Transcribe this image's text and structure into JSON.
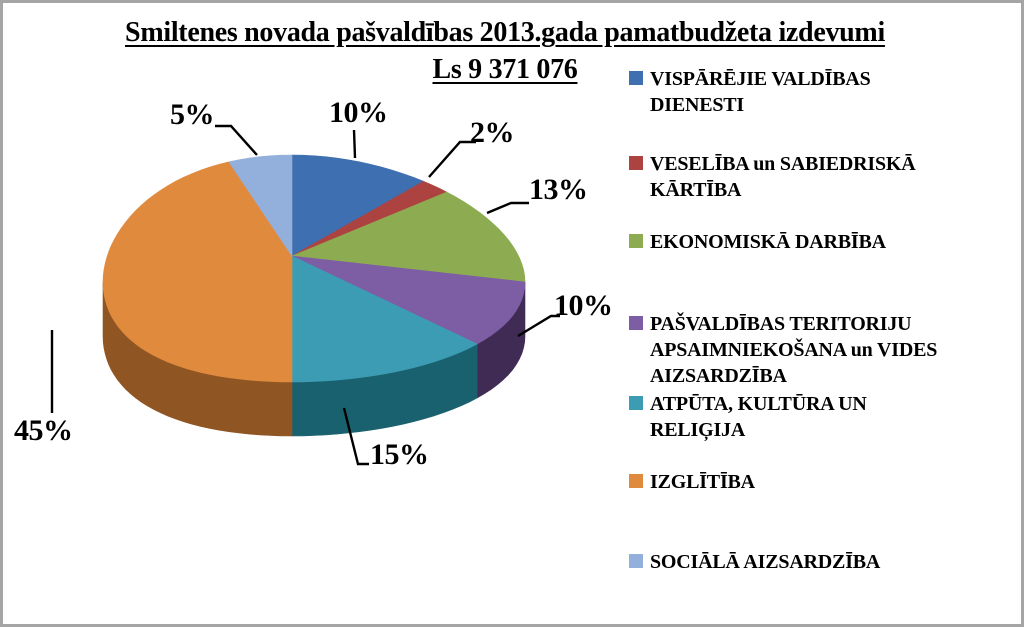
{
  "frame": {
    "border_color": "#A5A5A5",
    "background": "#FFFFFF"
  },
  "chart_data": {
    "type": "pie",
    "style": "3d",
    "title": "Smiltenes novada pašvaldības 2013.gada pamatbudžeta izdevumi",
    "subtitle": "Ls 9 371 076",
    "total_label": "Ls 9 371 076",
    "units": "percent",
    "start_angle_deg": 0,
    "direction": "clockwise",
    "legend_position": "right",
    "slices": [
      {
        "label": "VISPĀRĒJIE VALDĪBAS DIENESTI",
        "value": 10,
        "data_label": "10%",
        "color": "#3E6FB0"
      },
      {
        "label": "VESELĪBA un SABIEDRISKĀ KĀRTĪBA",
        "value": 2,
        "data_label": "2%",
        "color": "#AC4341"
      },
      {
        "label": "EKONOMISKĀ DARBĪBA",
        "value": 13,
        "data_label": "13%",
        "color": "#8DAC51"
      },
      {
        "label": "PAŠVALDĪBAS TERITORIJU APSAIMNIEKOŠANA un VIDES AIZSARDZĪBA",
        "value": 10,
        "data_label": "10%",
        "color": "#7D5DA4",
        "side_color": "#402B54"
      },
      {
        "label": "ATPŪTA, KULTŪRA UN RELIĢIJA",
        "value": 15,
        "data_label": "15%",
        "color": "#3C9CB4",
        "side_color": "#1A616F"
      },
      {
        "label": "IZGLĪTĪBA",
        "value": 45,
        "data_label": "45%",
        "color": "#E08A3E",
        "side_color": "#8F5523"
      },
      {
        "label": "SOCIĀLĀ AIZSARDZĪBA",
        "value": 5,
        "data_label": "5%",
        "color": "#93AFDC"
      }
    ]
  }
}
